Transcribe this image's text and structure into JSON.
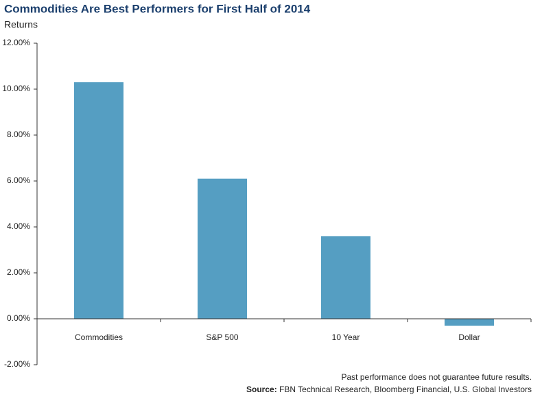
{
  "chart_data": {
    "type": "bar",
    "title": "Commodities Are Best Performers for First Half of 2014",
    "subtitle": "Returns",
    "categories": [
      "Commodities",
      "S&P 500",
      "10 Year",
      "Dollar"
    ],
    "values": [
      10.3,
      6.1,
      3.6,
      -0.3
    ],
    "color": "#559ec2",
    "ylim": [
      -2,
      12
    ],
    "yticks": [
      {
        "value": -2,
        "label": "-2.00%"
      },
      {
        "value": 0,
        "label": "0.00%"
      },
      {
        "value": 2,
        "label": "2.00%"
      },
      {
        "value": 4,
        "label": "4.00%"
      },
      {
        "value": 6,
        "label": "6.00%"
      },
      {
        "value": 8,
        "label": "8.00%"
      },
      {
        "value": 10,
        "label": "10.00%"
      },
      {
        "value": 12,
        "label": "12.00%"
      }
    ],
    "grid": false,
    "footnote": "Past performance does not guarantee future results.",
    "source_label": "Source:",
    "source": "FBN Technical Research, Bloomberg Financial, U.S. Global Investors"
  }
}
